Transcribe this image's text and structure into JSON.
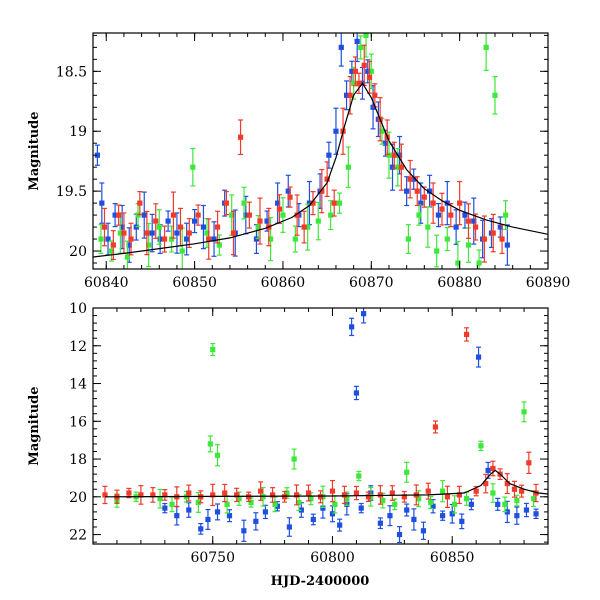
{
  "chart_data": [
    {
      "type": "scatter",
      "panel": "top",
      "xlabel": "",
      "ylabel": "Magnitude",
      "xlim": [
        60838.5,
        60890
      ],
      "ylim": [
        20.15,
        18.18
      ],
      "y_inverted": true,
      "xticks": [
        60840,
        60850,
        60860,
        60870,
        60880,
        60890
      ],
      "xtick_labels": [
        "60840",
        "60850",
        "60860",
        "60870",
        "60880",
        "60890"
      ],
      "yticks": [
        18.5,
        19,
        19.5,
        20
      ],
      "ytick_labels": [
        "18.5",
        "19",
        "19.5",
        "20"
      ],
      "series": [
        {
          "color": "#1f4fe0",
          "x": [
            60839.0,
            60839.5,
            60840.2,
            60841.0,
            60841.8,
            60842.6,
            60843.4,
            60844.3,
            60845.2,
            60846.1,
            60847.0,
            60848.0,
            60849.1,
            60850.0,
            60851.0,
            60852.2,
            60853.4,
            60854.6,
            60855.8,
            60857.0,
            60858.2,
            60859.4,
            60860.6,
            60861.8,
            60863.0,
            60864.2,
            60865.2,
            60866.0,
            60866.6,
            60867.2,
            60867.8,
            60868.4,
            60869.0,
            60869.6,
            60870.2,
            60870.8,
            60871.6,
            60872.4,
            60873.2,
            60874.0,
            60874.8,
            60875.6,
            60876.6,
            60877.6,
            60878.6,
            60879.6,
            60880.6,
            60881.6,
            60882.6,
            60883.6,
            60884.6,
            60885.4
          ],
          "y": [
            19.2,
            19.6,
            19.9,
            19.7,
            19.8,
            19.95,
            19.8,
            19.7,
            19.85,
            19.9,
            19.75,
            19.85,
            19.9,
            19.75,
            19.8,
            19.9,
            19.6,
            19.85,
            19.7,
            19.9,
            19.75,
            19.6,
            19.5,
            19.7,
            19.6,
            19.5,
            19.2,
            19.0,
            18.3,
            18.7,
            18.5,
            18.25,
            18.6,
            18.5,
            18.8,
            18.9,
            19.1,
            19.3,
            19.2,
            19.5,
            19.4,
            19.6,
            19.5,
            19.7,
            19.6,
            19.8,
            19.7,
            19.75,
            19.9,
            19.85,
            19.8,
            19.95
          ]
        },
        {
          "color": "#3ee83a",
          "x": [
            60839.4,
            60840.6,
            60841.6,
            60842.4,
            60843.6,
            60844.8,
            60846.0,
            60847.4,
            60848.6,
            60849.8,
            60851.4,
            60852.8,
            60854.2,
            60855.6,
            60857.2,
            60858.6,
            60860.0,
            60861.4,
            60862.8,
            60864.0,
            60865.4,
            60866.4,
            60867.4,
            60868.0,
            60868.8,
            60869.4,
            60870.0,
            60871.2,
            60872.0,
            60873.0,
            60874.2,
            60875.4,
            60876.4,
            60877.4,
            60878.6,
            60879.8,
            60881.0,
            60882.2,
            60883.0,
            60884.0,
            60885.2
          ],
          "y": [
            19.9,
            20.0,
            19.85,
            20.05,
            19.7,
            19.95,
            19.8,
            19.9,
            20.0,
            19.3,
            19.85,
            19.95,
            19.7,
            19.6,
            19.8,
            19.9,
            19.7,
            19.9,
            19.8,
            19.75,
            19.7,
            19.6,
            19.3,
            18.6,
            18.3,
            18.2,
            18.5,
            19.0,
            19.2,
            19.3,
            19.9,
            19.7,
            19.8,
            20.0,
            19.9,
            20.1,
            19.95,
            20.1,
            18.3,
            18.7,
            19.7
          ]
        },
        {
          "color": "#f03a2a",
          "x": [
            60839.8,
            60840.8,
            60841.4,
            60842.0,
            60842.8,
            60843.8,
            60844.6,
            60845.6,
            60846.6,
            60847.6,
            60848.4,
            60849.4,
            60850.4,
            60851.6,
            60852.6,
            60853.6,
            60854.4,
            60855.2,
            60856.2,
            60857.4,
            60858.4,
            60859.6,
            60860.8,
            60861.6,
            60862.4,
            60863.4,
            60864.4,
            60865.0,
            60865.8,
            60866.8,
            60867.6,
            60868.2,
            60868.6,
            60869.2,
            60869.8,
            60870.4,
            60871.0,
            60871.8,
            60872.6,
            60873.4,
            60874.4,
            60875.2,
            60876.0,
            60877.0,
            60878.0,
            60879.0,
            60880.0,
            60881.0,
            60881.8,
            60882.8,
            60883.8,
            60884.8
          ],
          "y": [
            19.8,
            19.95,
            19.7,
            19.85,
            19.9,
            19.6,
            19.85,
            19.75,
            19.9,
            19.7,
            19.8,
            19.85,
            19.7,
            19.9,
            19.8,
            19.6,
            19.85,
            19.05,
            19.7,
            19.75,
            19.8,
            19.65,
            19.55,
            19.7,
            19.8,
            19.6,
            19.5,
            19.4,
            19.6,
            19.0,
            18.7,
            18.5,
            18.6,
            18.45,
            18.55,
            18.7,
            18.9,
            19.05,
            19.2,
            19.3,
            19.4,
            19.5,
            19.55,
            19.6,
            19.65,
            19.7,
            19.6,
            19.75,
            19.8,
            19.9,
            19.85,
            19.9
          ]
        }
      ],
      "model_curve": {
        "x": [
          60838.5,
          60842,
          60846,
          60850,
          60854,
          60858,
          60861,
          60863,
          60865,
          60866,
          60867,
          60868,
          60869,
          60870,
          60871,
          60872,
          60874,
          60876,
          60878,
          60880,
          60883,
          60886,
          60890
        ],
        "y": [
          20.05,
          20.02,
          19.98,
          19.94,
          19.89,
          19.81,
          19.72,
          19.62,
          19.43,
          19.22,
          18.95,
          18.7,
          18.6,
          18.72,
          18.9,
          19.08,
          19.32,
          19.48,
          19.58,
          19.66,
          19.74,
          19.8,
          19.86
        ]
      }
    },
    {
      "type": "scatter",
      "panel": "bottom",
      "xlabel": "HJD-2400000",
      "ylabel": "Magnitude",
      "xlim": [
        60700,
        60890
      ],
      "ylim": [
        22.5,
        10
      ],
      "y_inverted": true,
      "xticks": [
        60750,
        60800,
        60850
      ],
      "xtick_labels": [
        "60750",
        "60800",
        "60850"
      ],
      "yticks": [
        10,
        12,
        14,
        16,
        18,
        20,
        22
      ],
      "ytick_labels": [
        "10",
        "12",
        "14",
        "16",
        "18",
        "20",
        "22"
      ],
      "series": [
        {
          "color": "#1f4fe0",
          "x": [
            60730,
            60735,
            60740,
            60745,
            60748,
            60752,
            60757,
            60763,
            60768,
            60772,
            60777,
            60782,
            60787,
            60792,
            60796,
            60800,
            60803,
            60806,
            60808,
            60810,
            60812,
            60813,
            60816,
            60820,
            60824,
            60828,
            60831,
            60834,
            60838,
            60842,
            60846,
            60850,
            60854,
            60858,
            60861,
            60865,
            60869,
            60873,
            60877,
            60881,
            60885
          ],
          "y": [
            20.6,
            21.0,
            20.7,
            21.7,
            21.2,
            20.8,
            21.0,
            21.8,
            21.3,
            20.8,
            20.5,
            21.6,
            20.7,
            21.2,
            20.6,
            20.9,
            21.5,
            20.4,
            11.0,
            14.5,
            20.6,
            10.3,
            19.8,
            21.4,
            21.0,
            22.0,
            20.7,
            21.2,
            21.8,
            20.5,
            21.0,
            20.9,
            21.3,
            20.4,
            12.6,
            18.6,
            20.4,
            20.8,
            21.0,
            20.7,
            20.9
          ]
        },
        {
          "color": "#3ee83a",
          "x": [
            60710,
            60718,
            60728,
            60733,
            60739,
            60744,
            60749,
            60750,
            60752,
            60756,
            60761,
            60766,
            60771,
            60776,
            60781,
            60784,
            60786,
            60791,
            60796,
            60801,
            60806,
            60811,
            60816,
            60821,
            60826,
            60831,
            60836,
            60841,
            60846,
            60851,
            60856,
            60862,
            60867,
            60872,
            60877,
            60880,
            60884
          ],
          "y": [
            20.2,
            20.0,
            20.1,
            20.4,
            20.0,
            20.3,
            17.2,
            12.2,
            17.8,
            20.4,
            20.1,
            20.3,
            20.0,
            20.4,
            19.8,
            18.0,
            20.3,
            20.1,
            20.0,
            20.4,
            20.1,
            18.9,
            20.0,
            20.2,
            20.4,
            18.7,
            20.1,
            20.3,
            19.7,
            20.4,
            20.1,
            17.3,
            19.8,
            20.4,
            20.2,
            15.5,
            20.1
          ]
        },
        {
          "color": "#f03a2a",
          "x": [
            60705,
            60710,
            60715,
            60720,
            60725,
            60730,
            60735,
            60740,
            60745,
            60750,
            60755,
            60760,
            60765,
            60770,
            60775,
            60780,
            60785,
            60790,
            60795,
            60800,
            60805,
            60810,
            60815,
            60820,
            60825,
            60830,
            60835,
            60840,
            60843,
            60848,
            60853,
            60856,
            60860,
            60864,
            60867,
            60870,
            60873,
            60876,
            60879,
            60882,
            60885
          ],
          "y": [
            19.9,
            20.0,
            19.8,
            19.9,
            19.9,
            19.9,
            20.0,
            19.8,
            20.0,
            19.9,
            19.8,
            19.9,
            20.0,
            19.7,
            19.9,
            20.0,
            19.9,
            19.8,
            20.0,
            19.7,
            19.9,
            19.8,
            20.0,
            19.9,
            19.8,
            20.0,
            19.9,
            19.7,
            16.3,
            20.0,
            19.9,
            11.4,
            19.7,
            19.3,
            18.5,
            18.8,
            19.3,
            19.6,
            19.7,
            18.2,
            19.8
          ]
        }
      ],
      "model_curve": {
        "x": [
          60705,
          60750,
          60800,
          60840,
          60855,
          60862,
          60866,
          60868,
          60870,
          60874,
          60880,
          60886,
          60890
        ],
        "y": [
          20.0,
          19.98,
          19.96,
          19.9,
          19.8,
          19.4,
          18.8,
          18.6,
          18.8,
          19.3,
          19.6,
          19.8,
          19.85
        ]
      }
    }
  ]
}
